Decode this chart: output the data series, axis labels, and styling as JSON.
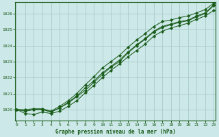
{
  "title": "Graphe pression niveau de la mer (hPa)",
  "bg_color": "#cce8e8",
  "grid_color": "#aacccc",
  "line_color": "#1a5c1a",
  "x_min": 0,
  "x_max": 23,
  "y_min": 1019.3,
  "y_max": 1026.7,
  "yticks": [
    1020,
    1021,
    1022,
    1023,
    1024,
    1025,
    1026
  ],
  "xticks": [
    0,
    1,
    2,
    3,
    4,
    5,
    6,
    7,
    8,
    9,
    10,
    11,
    12,
    13,
    14,
    15,
    16,
    17,
    18,
    19,
    20,
    21,
    22,
    23
  ],
  "series": [
    [
      1020.0,
      1019.9,
      1020.0,
      1020.0,
      1019.85,
      1020.1,
      1020.4,
      1020.8,
      1021.2,
      1021.7,
      1022.2,
      1022.65,
      1023.0,
      1023.55,
      1024.0,
      1024.4,
      1024.85,
      1025.15,
      1025.3,
      1025.45,
      1025.55,
      1025.8,
      1026.0,
      1026.5
    ],
    [
      1020.0,
      1019.75,
      1019.7,
      1019.85,
      1019.75,
      1019.9,
      1020.2,
      1020.55,
      1021.05,
      1021.5,
      1022.0,
      1022.45,
      1022.85,
      1023.3,
      1023.7,
      1024.1,
      1024.6,
      1024.9,
      1025.1,
      1025.25,
      1025.4,
      1025.65,
      1025.85,
      1026.2
    ],
    [
      1020.0,
      1019.9,
      1020.0,
      1020.0,
      1019.85,
      1020.1,
      1020.45,
      1020.85,
      1021.35,
      1021.8,
      1022.3,
      1022.7,
      1023.1,
      1023.6,
      1024.05,
      1024.45,
      1024.9,
      1025.2,
      1025.35,
      1025.5,
      1025.6,
      1025.85,
      1026.05,
      1026.55
    ],
    [
      1020.0,
      1020.0,
      1020.05,
      1020.05,
      1019.9,
      1020.2,
      1020.55,
      1021.0,
      1021.55,
      1022.05,
      1022.6,
      1023.0,
      1023.4,
      1023.9,
      1024.35,
      1024.75,
      1025.2,
      1025.5,
      1025.6,
      1025.75,
      1025.85,
      1026.05,
      1026.25,
      1026.65
    ]
  ]
}
